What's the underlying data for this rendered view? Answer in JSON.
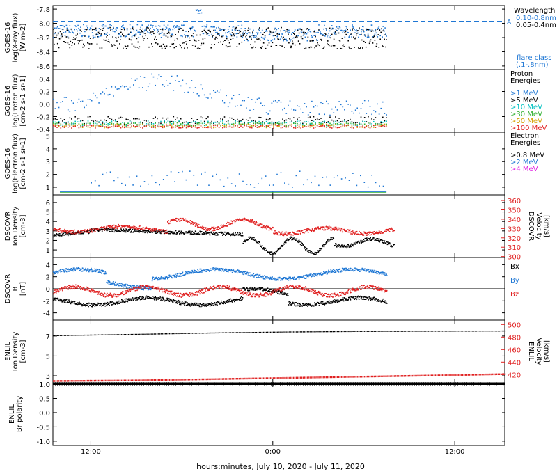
{
  "figure": {
    "xlabel": "hours:minutes, July 10, 2020 - July 11, 2020",
    "x_ticks": [
      "12:00",
      "0:00",
      "12:00"
    ],
    "x_ticks_hours": [
      12,
      24,
      36
    ],
    "x_range_hours": [
      9.5,
      39.3
    ]
  },
  "chart_data": [
    {
      "type": "scatter",
      "panel": "xray",
      "ylabel": [
        "GOES-16",
        "log(X-ray flux)",
        "[W m-2]"
      ],
      "yticks": [
        "-7.8",
        "-8.0",
        "-8.2",
        "-8.4",
        "-8.6"
      ],
      "ylim": [
        -8.65,
        -7.75
      ],
      "threshold": {
        "value": -7.97,
        "label": "A"
      },
      "legend_title": "Wavelength",
      "legend": [
        {
          "label": "0.10-0.8nm",
          "color": "#1f77d4"
        },
        {
          "label": "0.05-0.4nm",
          "color": "#000000"
        }
      ],
      "note": [
        "flare class",
        "(.1-.8nm)"
      ],
      "series": [
        {
          "name": "0.10-0.8nm",
          "color": "#1f77d4",
          "baseline": -8.12,
          "end_hour": 31.5
        },
        {
          "name": "0.05-0.4nm",
          "color": "#000000",
          "baseline": -8.18,
          "end_hour": 31.5
        }
      ]
    },
    {
      "type": "scatter",
      "panel": "proton",
      "ylabel": [
        "GOES-16",
        "log(Proton flux)",
        "[cm-2 s-1 sr-1]"
      ],
      "yticks": [
        "0.4",
        "0.2",
        "0.0",
        "-0.2",
        "-0.4"
      ],
      "ylim": [
        -0.45,
        0.55
      ],
      "legend_title": [
        "Proton",
        "Energies"
      ],
      "legend": [
        {
          "label": ">1 MeV",
          "color": "#1f77d4"
        },
        {
          "label": ">5 MeV",
          "color": "#000000"
        },
        {
          "label": ">10 MeV",
          "color": "#00c0c0"
        },
        {
          "label": ">30 MeV",
          "color": "#30b030"
        },
        {
          "label": ">50 MeV",
          "color": "#d4a000"
        },
        {
          "label": ">100 MeV",
          "color": "#e02020"
        }
      ]
    },
    {
      "type": "scatter",
      "panel": "electron",
      "ylabel": [
        "GOES-16",
        "log(Electron flux)",
        "[cm-2 s-1 sr-1]"
      ],
      "yticks": [
        "5",
        "4",
        "3",
        "2",
        "1"
      ],
      "ylim": [
        0.4,
        5.3
      ],
      "threshold": {
        "value": 5.0
      },
      "legend_title": [
        "Electron",
        "Energies"
      ],
      "legend": [
        {
          "label": ">0.8 MeV",
          "color": "#000000"
        },
        {
          "label": ">2 MeV",
          "color": "#1f77d4"
        },
        {
          "label": ">4 MeV",
          "color": "#e020e0"
        }
      ]
    },
    {
      "type": "scatter",
      "panel": "dscovr_plasma",
      "ylabel": [
        "DSCOVR",
        "Ion Density",
        "[cm-3]"
      ],
      "yticks": [
        "6",
        "5",
        "4",
        "3",
        "2",
        "1"
      ],
      "ylim": [
        0.2,
        6.8
      ],
      "y2label": [
        "DSCOVR",
        "Velocity",
        "[km/s]"
      ],
      "y2ticks": [
        "360",
        "350",
        "340",
        "330",
        "320",
        "310",
        "300"
      ],
      "y2lim": [
        299,
        366
      ],
      "series": [
        {
          "name": "Ion Density",
          "color": "#000000"
        },
        {
          "name": "Velocity",
          "color": "#e02020"
        }
      ]
    },
    {
      "type": "scatter",
      "panel": "dscovr_mag",
      "ylabel": [
        "DSCOVR",
        "B",
        "[nT]"
      ],
      "yticks": [
        "4",
        "2",
        "0",
        "-2",
        "-4"
      ],
      "ylim": [
        -5.2,
        5.2
      ],
      "legend": [
        {
          "label": "Bx",
          "color": "#000000"
        },
        {
          "label": "By",
          "color": "#1f77d4"
        },
        {
          "label": "Bz",
          "color": "#e02020"
        }
      ]
    },
    {
      "type": "line",
      "panel": "enlil_plasma",
      "ylabel": [
        "ENLIL",
        "Ion Density",
        "[cm-3]"
      ],
      "yticks": [
        "7",
        "5",
        "3"
      ],
      "ylim": [
        2.3,
        8.6
      ],
      "y2label": [
        "ENLIL",
        "Velocity",
        "[km/s]"
      ],
      "y2ticks": [
        "500",
        "480",
        "460",
        "440",
        "420"
      ],
      "y2lim": [
        407,
        507
      ],
      "series": [
        {
          "name": "Ion Density",
          "color": "#000000",
          "x": [
            9.5,
            15,
            20,
            25,
            30,
            35,
            39.3
          ],
          "values": [
            7.05,
            7.18,
            7.32,
            7.42,
            7.48,
            7.5,
            7.52
          ]
        },
        {
          "name": "Velocity",
          "color": "#e02020",
          "x": [
            9.5,
            15,
            20,
            25,
            30,
            35,
            39.3
          ],
          "values": [
            410,
            411,
            413,
            415,
            417,
            419,
            421
          ]
        }
      ]
    },
    {
      "type": "line",
      "panel": "enlil_polarity",
      "ylabel": [
        "ENLIL",
        "Br polarity"
      ],
      "yticks": [
        "1.0",
        "0.5",
        "0.0",
        "-0.5",
        "-1.0"
      ],
      "ylim": [
        -1.15,
        1.05
      ],
      "series": [
        {
          "name": "Br polarity",
          "color": "#000000",
          "x": [
            9.5,
            39.3
          ],
          "values": [
            1.0,
            1.0
          ]
        }
      ]
    }
  ]
}
